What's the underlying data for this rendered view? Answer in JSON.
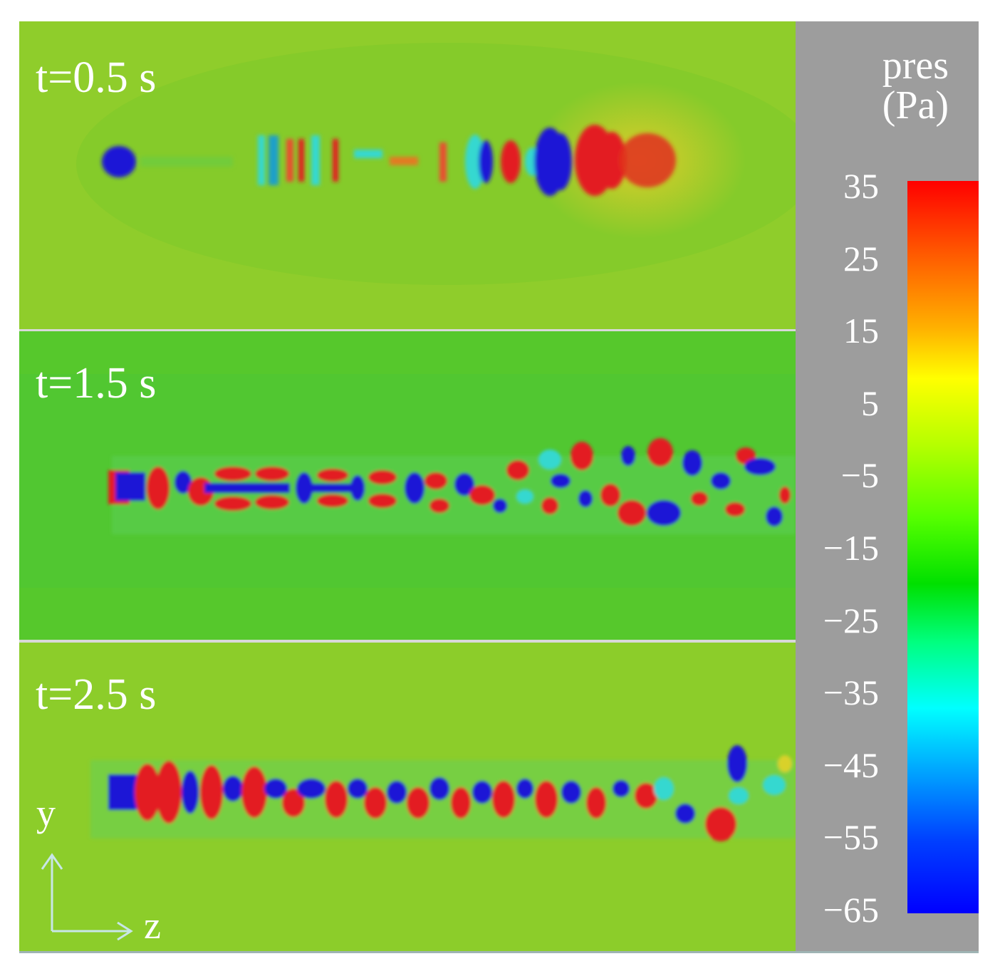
{
  "panels": [
    {
      "label": "t=0.5 s"
    },
    {
      "label": "t=1.5 s"
    },
    {
      "label": "t=2.5 s"
    }
  ],
  "colorbar": {
    "title_line1": "pres",
    "title_line2": "(Pa)",
    "ticks": [
      "35",
      "25",
      "15",
      "5",
      "−5",
      "−15",
      "−25",
      "−35",
      "−45",
      "−55",
      "−65"
    ],
    "max": 35,
    "min": -65
  },
  "axes": {
    "vertical": "y",
    "horizontal": "z"
  },
  "colors": {
    "bg_green_top": "#8ccd2a",
    "bg_green_mid": "#55c82d",
    "red": "#e31b23",
    "blue": "#1c18d6",
    "cyan": "#35d8d0",
    "yellow": "#d9d12a",
    "colorbar_bg": "#9d9d9d"
  }
}
